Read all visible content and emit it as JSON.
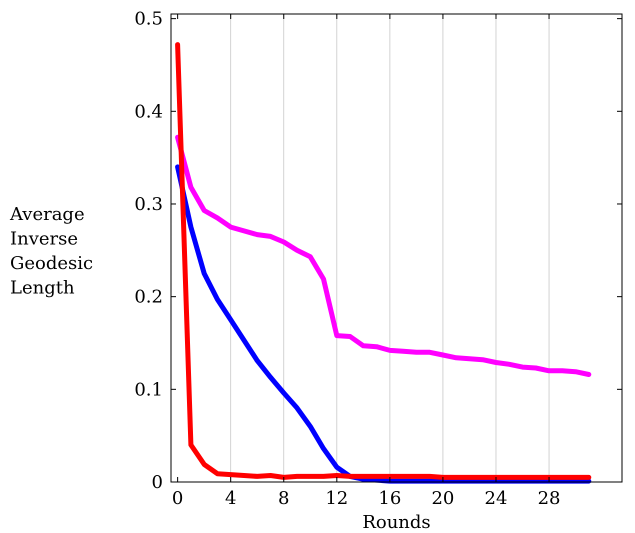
{
  "chart_data": {
    "type": "line",
    "title": "",
    "xlabel": "Rounds",
    "ylabel_lines": [
      "Average",
      "Inverse",
      "Geodesic",
      "Length"
    ],
    "xlim": [
      -0.5,
      33.5
    ],
    "ylim": [
      0,
      0.505
    ],
    "xticks": [
      0,
      4,
      8,
      12,
      16,
      20,
      24,
      28
    ],
    "yticks": [
      0,
      0.1,
      0.2,
      0.3,
      0.4,
      0.5
    ],
    "ytick_labels": [
      "0",
      "0.1",
      "0.2",
      "0.3",
      "0.4",
      "0.5"
    ],
    "grid": "vertical",
    "legend": "none",
    "series": [
      {
        "color": "#ff00ff",
        "x": [
          0,
          1,
          2,
          3,
          4,
          5,
          6,
          7,
          8,
          9,
          10,
          11,
          12,
          13,
          14,
          15,
          16,
          17,
          18,
          19,
          20,
          21,
          22,
          23,
          24,
          25,
          26,
          27,
          28,
          29,
          30,
          31
        ],
        "values": [
          0.372,
          0.318,
          0.293,
          0.285,
          0.275,
          0.271,
          0.267,
          0.265,
          0.259,
          0.25,
          0.243,
          0.219,
          0.158,
          0.157,
          0.147,
          0.146,
          0.142,
          0.141,
          0.14,
          0.14,
          0.137,
          0.134,
          0.133,
          0.132,
          0.129,
          0.127,
          0.124,
          0.123,
          0.12,
          0.12,
          0.119,
          0.116
        ]
      },
      {
        "color": "#0000ff",
        "x": [
          0,
          1,
          2,
          3,
          4,
          5,
          6,
          7,
          8,
          9,
          10,
          11,
          12,
          13,
          14,
          15,
          16,
          17,
          18,
          19,
          20,
          21,
          22,
          23,
          24,
          25,
          26,
          27,
          28,
          29,
          30,
          31
        ],
        "values": [
          0.34,
          0.275,
          0.225,
          0.197,
          0.175,
          0.153,
          0.131,
          0.113,
          0.096,
          0.08,
          0.06,
          0.036,
          0.016,
          0.006,
          0.003,
          0.002,
          0.001,
          0.001,
          0.001,
          0.001,
          0.001,
          0.001,
          0.001,
          0.001,
          0.001,
          0.001,
          0.001,
          0.001,
          0.001,
          0.001,
          0.001,
          0.001
        ]
      },
      {
        "color": "#ff0000",
        "x": [
          0,
          1,
          2,
          3,
          4,
          5,
          6,
          7,
          8,
          9,
          10,
          11,
          12,
          13,
          14,
          15,
          16,
          17,
          18,
          19,
          20,
          21,
          22,
          23,
          24,
          25,
          26,
          27,
          28,
          29,
          30,
          31
        ],
        "values": [
          0.472,
          0.04,
          0.019,
          0.009,
          0.008,
          0.007,
          0.006,
          0.007,
          0.005,
          0.006,
          0.006,
          0.006,
          0.007,
          0.006,
          0.006,
          0.006,
          0.006,
          0.006,
          0.006,
          0.006,
          0.005,
          0.005,
          0.005,
          0.005,
          0.005,
          0.005,
          0.005,
          0.005,
          0.005,
          0.005,
          0.005,
          0.005
        ]
      }
    ]
  }
}
